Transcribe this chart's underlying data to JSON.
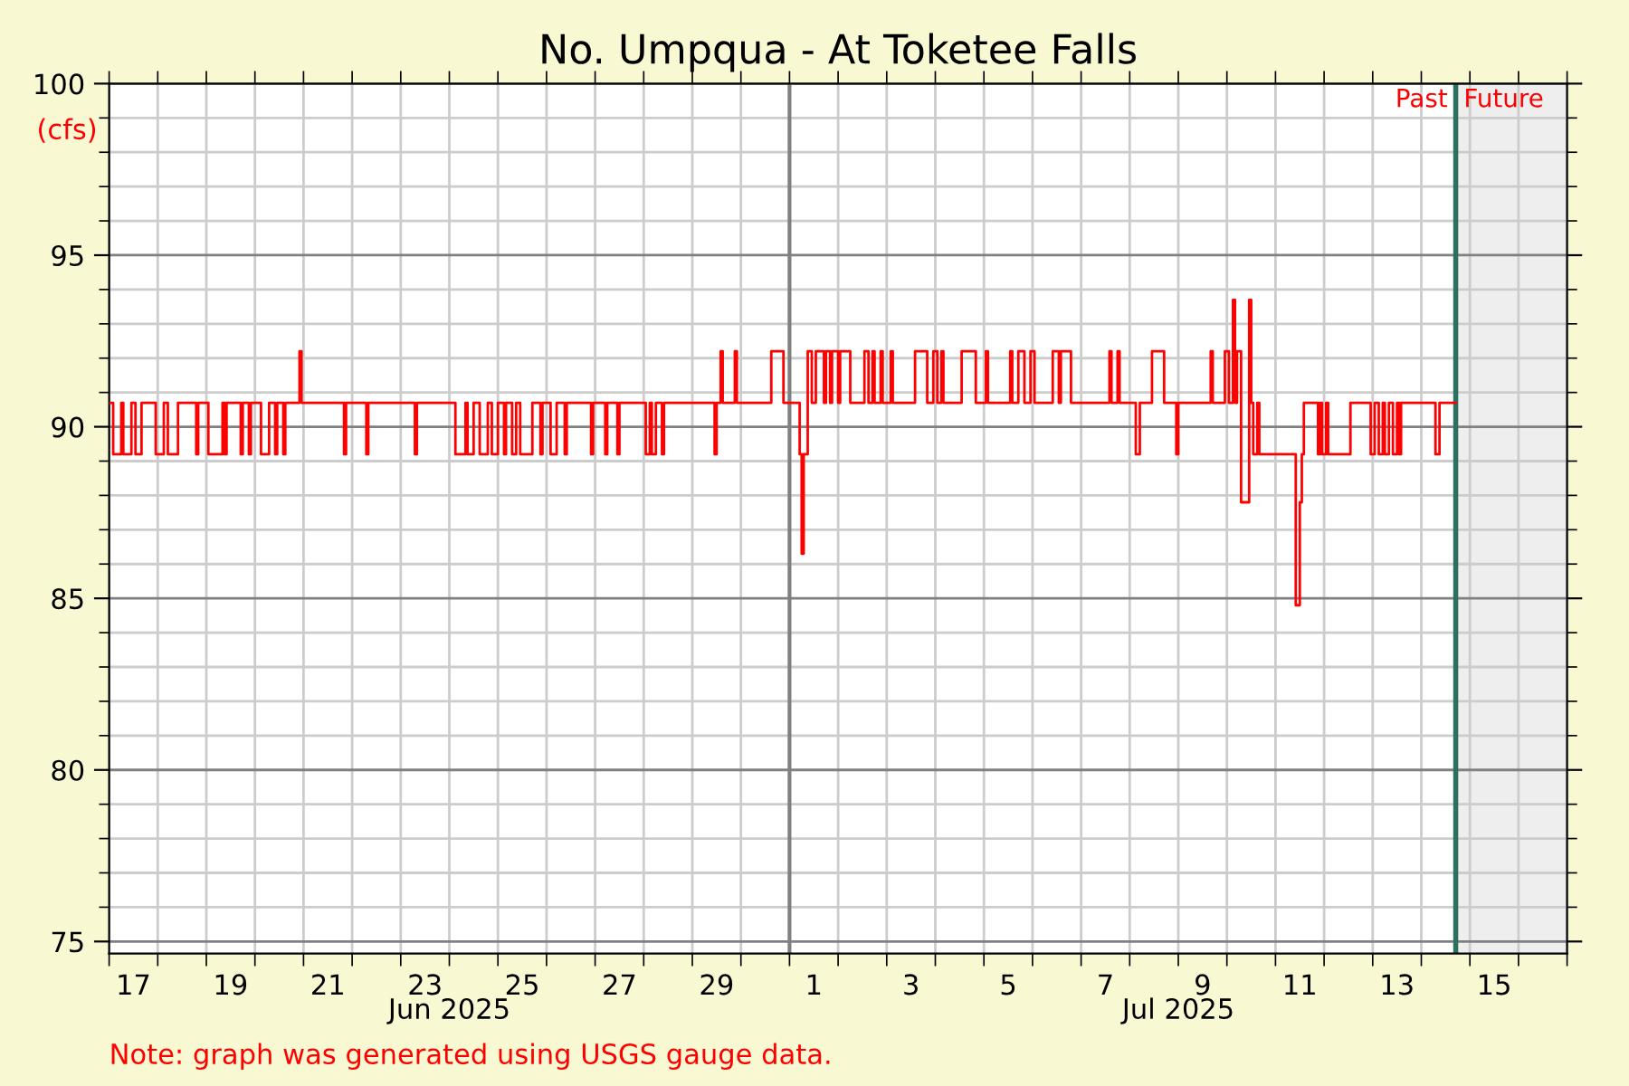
{
  "chart_data": {
    "type": "step",
    "title": "No. Umpqua - At Toketee Falls",
    "ylabel": "(cfs)",
    "annotations": [
      "Note: graph was generated using USGS gauge data."
    ],
    "xlim": [
      "2025-06-17",
      "2025-07-17"
    ],
    "xticks": [
      {
        "value": "2025-06-17",
        "label": null
      },
      {
        "value": "2025-06-17T12:00",
        "label": "17"
      },
      {
        "value": "2025-06-18",
        "label": null
      },
      {
        "value": "2025-06-19",
        "label": null
      },
      {
        "value": "2025-06-19T12:00",
        "label": "19"
      },
      {
        "value": "2025-06-20",
        "label": null
      },
      {
        "value": "2025-06-21",
        "label": null
      },
      {
        "value": "2025-06-21T12:00",
        "label": "21"
      },
      {
        "value": "2025-06-22",
        "label": null
      },
      {
        "value": "2025-06-23",
        "label": null
      },
      {
        "value": "2025-06-23T12:00",
        "label": "23"
      },
      {
        "value": "2025-06-24",
        "label": null
      },
      {
        "value": "2025-06-25",
        "label": null
      },
      {
        "value": "2025-06-25T12:00",
        "label": "25"
      },
      {
        "value": "2025-06-26",
        "label": null
      },
      {
        "value": "2025-06-27",
        "label": null
      },
      {
        "value": "2025-06-27T12:00",
        "label": "27"
      },
      {
        "value": "2025-06-28",
        "label": null
      },
      {
        "value": "2025-06-29",
        "label": null
      },
      {
        "value": "2025-06-29T12:00",
        "label": "29"
      },
      {
        "value": "2025-06-30",
        "label": null
      },
      {
        "value": "2025-07-01",
        "label": null
      },
      {
        "value": "2025-07-01T12:00",
        "label": "1"
      },
      {
        "value": "2025-07-02",
        "label": null
      },
      {
        "value": "2025-07-03",
        "label": null
      },
      {
        "value": "2025-07-03T12:00",
        "label": "3"
      },
      {
        "value": "2025-07-04",
        "label": null
      },
      {
        "value": "2025-07-05",
        "label": null
      },
      {
        "value": "2025-07-05T12:00",
        "label": "5"
      },
      {
        "value": "2025-07-06",
        "label": null
      },
      {
        "value": "2025-07-07",
        "label": null
      },
      {
        "value": "2025-07-07T12:00",
        "label": "7"
      },
      {
        "value": "2025-07-08",
        "label": null
      },
      {
        "value": "2025-07-09",
        "label": null
      },
      {
        "value": "2025-07-09T12:00",
        "label": "9"
      },
      {
        "value": "2025-07-10",
        "label": null
      },
      {
        "value": "2025-07-11",
        "label": null
      },
      {
        "value": "2025-07-11T12:00",
        "label": "11"
      },
      {
        "value": "2025-07-12",
        "label": null
      },
      {
        "value": "2025-07-13",
        "label": null
      },
      {
        "value": "2025-07-13T12:00",
        "label": "13"
      },
      {
        "value": "2025-07-14",
        "label": null
      },
      {
        "value": "2025-07-15",
        "label": null
      },
      {
        "value": "2025-07-15T12:00",
        "label": "15"
      },
      {
        "value": "2025-07-16",
        "label": null
      },
      {
        "value": "2025-07-17",
        "label": null
      }
    ],
    "x2lim": [
      "2025-06-17",
      "2025-07-17"
    ],
    "x2ticks": [
      {
        "value": "2025-06-24",
        "label": "Jun 2025"
      },
      {
        "value": "2025-07-09",
        "label": "Jul 2025"
      }
    ],
    "ylim": [
      74.65,
      100
    ],
    "yticks": [
      75,
      {
        "value": 76,
        "label": null
      },
      {
        "value": 77,
        "label": null
      },
      {
        "value": 78,
        "label": null
      },
      {
        "value": 79,
        "label": null
      },
      80,
      {
        "value": 81,
        "label": null
      },
      {
        "value": 82,
        "label": null
      },
      {
        "value": 83,
        "label": null
      },
      {
        "value": 84,
        "label": null
      },
      85,
      {
        "value": 86,
        "label": null
      },
      {
        "value": 87,
        "label": null
      },
      {
        "value": 88,
        "label": null
      },
      {
        "value": 89,
        "label": null
      },
      90,
      {
        "value": 91,
        "label": null
      },
      {
        "value": 92,
        "label": null
      },
      {
        "value": 93,
        "label": null
      },
      {
        "value": 94,
        "label": null
      },
      95,
      {
        "value": 96,
        "label": null
      },
      {
        "value": 97,
        "label": null
      },
      {
        "value": 98,
        "label": null
      },
      {
        "value": 99,
        "label": null
      },
      100
    ],
    "grid": true,
    "ref_lines": [
      {
        "axis": "x",
        "value": "2025-07-01",
        "color": "#808080"
      },
      {
        "axis": "x",
        "value": "2025-07-14T17:00",
        "label": "Past",
        "color": "#2e7060"
      }
    ],
    "bands": [
      {
        "axis": "x",
        "from": "2025-07-14T17:00",
        "to": "2025-07-17",
        "label": "Future",
        "color": "#eeeeee"
      }
    ],
    "series": [
      {
        "color": "#ff0000",
        "x": [
          "2025-06-17T00:00",
          "2025-06-17T02:00",
          "2025-06-17T05:00",
          "2025-06-17T06:00",
          "2025-06-17T07:00",
          "2025-06-17T10:00",
          "2025-06-17T11:00",
          "2025-06-17T13:00",
          "2025-06-17T15:00",
          "2025-06-17T16:00",
          "2025-06-17T23:00",
          "2025-06-18T02:00",
          "2025-06-18T03:00",
          "2025-06-18T05:00",
          "2025-06-18T09:00",
          "2025-06-18T10:00",
          "2025-06-18T19:00",
          "2025-06-18T20:00",
          "2025-06-19T01:00",
          "2025-06-19T07:00",
          "2025-06-19T08:00",
          "2025-06-19T09:00",
          "2025-06-19T10:00",
          "2025-06-19T17:00",
          "2025-06-19T18:00",
          "2025-06-19T21:00",
          "2025-06-19T22:00",
          "2025-06-20T03:00",
          "2025-06-20T06:00",
          "2025-06-20T07:00",
          "2025-06-20T10:00",
          "2025-06-20T11:00",
          "2025-06-20T14:00",
          "2025-06-20T15:00",
          "2025-06-20T21:00",
          "2025-06-20T22:00",
          "2025-06-20T23:00",
          "2025-06-21T20:00",
          "2025-06-21T21:00",
          "2025-06-22T07:00",
          "2025-06-22T08:00",
          "2025-06-23T07:00",
          "2025-06-23T08:00",
          "2025-06-24T03:00",
          "2025-06-24T07:00",
          "2025-06-24T08:00",
          "2025-06-24T09:00",
          "2025-06-24T12:00",
          "2025-06-24T15:00",
          "2025-06-24T19:00",
          "2025-06-24T21:00",
          "2025-06-25T00:00",
          "2025-06-25T03:00",
          "2025-06-25T04:00",
          "2025-06-25T07:00",
          "2025-06-25T09:00",
          "2025-06-25T11:00",
          "2025-06-25T16:00",
          "2025-06-25T17:00",
          "2025-06-25T21:00",
          "2025-06-25T22:00",
          "2025-06-26T02:00",
          "2025-06-26T05:00",
          "2025-06-26T09:00",
          "2025-06-26T10:00",
          "2025-06-26T22:00",
          "2025-06-26T23:00",
          "2025-06-27T05:00",
          "2025-06-27T06:00",
          "2025-06-27T11:00",
          "2025-06-27T12:00",
          "2025-06-28T01:00",
          "2025-06-28T03:00",
          "2025-06-28T04:00",
          "2025-06-28T06:00",
          "2025-06-28T09:00",
          "2025-06-28T10:00",
          "2025-06-29T11:00",
          "2025-06-29T12:00",
          "2025-06-29T14:00",
          "2025-06-29T15:00",
          "2025-06-29T21:00",
          "2025-06-29T22:00",
          "2025-06-30T15:00",
          "2025-06-30T20:00",
          "2025-06-30T21:00",
          "2025-07-01T03:00",
          "2025-07-01T05:00",
          "2025-07-01T06:00",
          "2025-07-01T07:00",
          "2025-07-01T09:00",
          "2025-07-01T11:00",
          "2025-07-01T13:00",
          "2025-07-01T16:00",
          "2025-07-01T17:00",
          "2025-07-01T18:00",
          "2025-07-01T20:00",
          "2025-07-01T21:00",
          "2025-07-02T00:00",
          "2025-07-02T01:00",
          "2025-07-02T05:00",
          "2025-07-02T06:00",
          "2025-07-02T13:00",
          "2025-07-02T15:00",
          "2025-07-02T17:00",
          "2025-07-02T18:00",
          "2025-07-02T21:00",
          "2025-07-02T22:00",
          "2025-07-03T02:00",
          "2025-07-03T03:00",
          "2025-07-03T14:00",
          "2025-07-03T19:00",
          "2025-07-03T20:00",
          "2025-07-03T23:00",
          "2025-07-04T01:00",
          "2025-07-04T03:00",
          "2025-07-04T04:00",
          "2025-07-04T13:00",
          "2025-07-04T19:00",
          "2025-07-04T20:00",
          "2025-07-05T01:00",
          "2025-07-05T02:00",
          "2025-07-05T13:00",
          "2025-07-05T14:00",
          "2025-07-05T17:00",
          "2025-07-05T20:00",
          "2025-07-05T23:00",
          "2025-07-06T01:00",
          "2025-07-06T10:00",
          "2025-07-06T13:00",
          "2025-07-06T14:00",
          "2025-07-06T17:00",
          "2025-07-06T19:00",
          "2025-07-07T13:00",
          "2025-07-07T14:00",
          "2025-07-07T15:00",
          "2025-07-07T18:00",
          "2025-07-07T19:00",
          "2025-07-08T03:00",
          "2025-07-08T05:00",
          "2025-07-08T11:00",
          "2025-07-08T16:00",
          "2025-07-08T17:00",
          "2025-07-08T23:00",
          "2025-07-09T00:00",
          "2025-07-09T16:00",
          "2025-07-09T17:00",
          "2025-07-09T23:00",
          "2025-07-10T01:00",
          "2025-07-10T03:00",
          "2025-07-10T04:00",
          "2025-07-10T05:00",
          "2025-07-10T07:00",
          "2025-07-10T09:00",
          "2025-07-10T11:00",
          "2025-07-10T12:00",
          "2025-07-10T13:00",
          "2025-07-10T15:00",
          "2025-07-10T16:00",
          "2025-07-11T09:00",
          "2025-07-11T10:00",
          "2025-07-11T12:00",
          "2025-07-11T13:00",
          "2025-07-11T14:00",
          "2025-07-11T20:00",
          "2025-07-11T21:00",
          "2025-07-11T22:00",
          "2025-07-11T23:00",
          "2025-07-12T01:00",
          "2025-07-12T02:00",
          "2025-07-12T12:00",
          "2025-07-12T13:00",
          "2025-07-12T22:00",
          "2025-07-12T23:00",
          "2025-07-13T01:00",
          "2025-07-13T03:00",
          "2025-07-13T05:00",
          "2025-07-13T06:00",
          "2025-07-13T08:00",
          "2025-07-13T10:00",
          "2025-07-13T12:00",
          "2025-07-13T13:00",
          "2025-07-13T14:00",
          "2025-07-14T06:00",
          "2025-07-14T07:00",
          "2025-07-14T08:00",
          "2025-07-14T09:00",
          "2025-07-14T17:00"
        ],
        "values": [
          90.7,
          89.2,
          89.2,
          90.7,
          89.2,
          89.2,
          90.7,
          89.2,
          89.2,
          90.7,
          89.2,
          89.2,
          90.7,
          89.2,
          89.2,
          90.7,
          89.2,
          90.7,
          89.2,
          89.2,
          90.7,
          89.2,
          90.7,
          89.2,
          90.7,
          89.2,
          90.7,
          89.2,
          89.2,
          90.7,
          89.2,
          90.7,
          89.2,
          90.7,
          90.7,
          92.2,
          90.7,
          89.2,
          90.7,
          89.2,
          90.7,
          89.2,
          90.7,
          89.2,
          89.2,
          90.7,
          89.2,
          90.7,
          89.2,
          90.7,
          89.2,
          90.7,
          89.2,
          90.7,
          89.2,
          90.7,
          89.2,
          89.2,
          90.7,
          89.2,
          90.7,
          89.2,
          90.7,
          89.2,
          90.7,
          89.2,
          90.7,
          89.2,
          90.7,
          89.2,
          90.7,
          89.2,
          90.7,
          89.2,
          90.7,
          89.2,
          90.7,
          89.2,
          90.7,
          92.2,
          90.7,
          92.2,
          90.7,
          92.2,
          92.2,
          90.7,
          90.7,
          89.2,
          86.3,
          89.2,
          92.2,
          90.7,
          92.2,
          92.2,
          90.7,
          92.2,
          90.7,
          92.2,
          90.7,
          92.2,
          92.2,
          90.7,
          92.2,
          90.7,
          92.2,
          90.7,
          92.2,
          90.7,
          92.2,
          90.7,
          92.2,
          92.2,
          90.7,
          92.2,
          90.7,
          92.2,
          90.7,
          92.2,
          92.2,
          90.7,
          92.2,
          90.7,
          92.2,
          90.7,
          92.2,
          90.7,
          92.2,
          90.7,
          92.2,
          90.7,
          92.2,
          92.2,
          90.7,
          90.7,
          92.2,
          90.7,
          92.2,
          90.7,
          89.2,
          90.7,
          92.2,
          92.2,
          90.7,
          89.2,
          90.7,
          92.2,
          90.7,
          92.2,
          90.7,
          93.7,
          90.7,
          92.2,
          87.8,
          87.8,
          93.7,
          90.7,
          89.2,
          90.7,
          89.2,
          89.2,
          84.8,
          87.8,
          89.2,
          90.7,
          90.7,
          89.2,
          90.7,
          89.2,
          90.7,
          89.2,
          89.2,
          90.7,
          90.7,
          89.2,
          90.7,
          89.2,
          90.7,
          89.2,
          90.7,
          89.2,
          90.7,
          89.2,
          90.7,
          90.7,
          89.2,
          89.2,
          90.7,
          90.7
        ]
      }
    ]
  }
}
